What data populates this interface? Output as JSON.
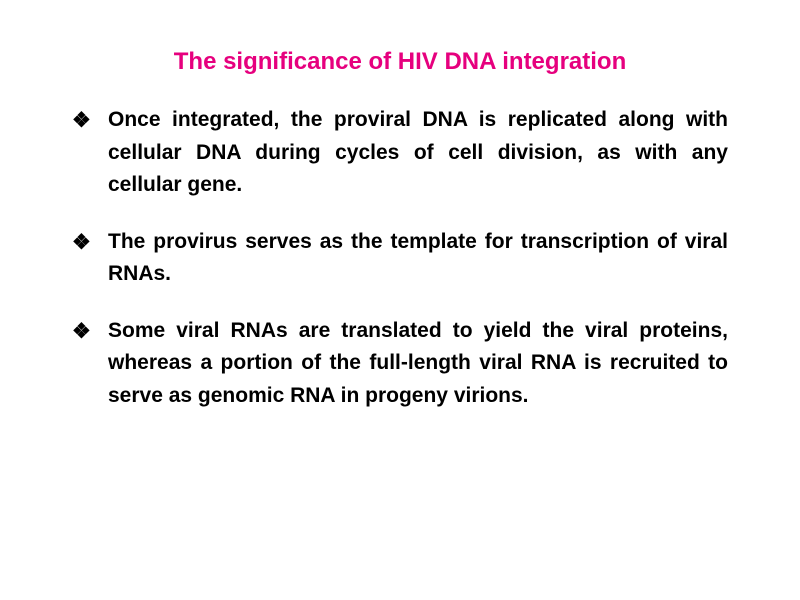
{
  "title": {
    "text": "The significance of HIV DNA integration",
    "color": "#e6007e",
    "fontsize": 24
  },
  "body": {
    "color": "#000000",
    "fontsize": 21,
    "line_height": 1.55,
    "bullet_glyph": "❖",
    "items": [
      "Once integrated, the proviral DNA is replicated along with cellular DNA during cycles of cell division, as with any cellular gene.",
      "The provirus serves as the template for transcription of viral RNAs.",
      "Some viral RNAs are translated to yield the viral proteins, whereas a portion of the full-length viral RNA is recruited to serve as genomic RNA in progeny virions."
    ]
  },
  "background_color": "#ffffff"
}
